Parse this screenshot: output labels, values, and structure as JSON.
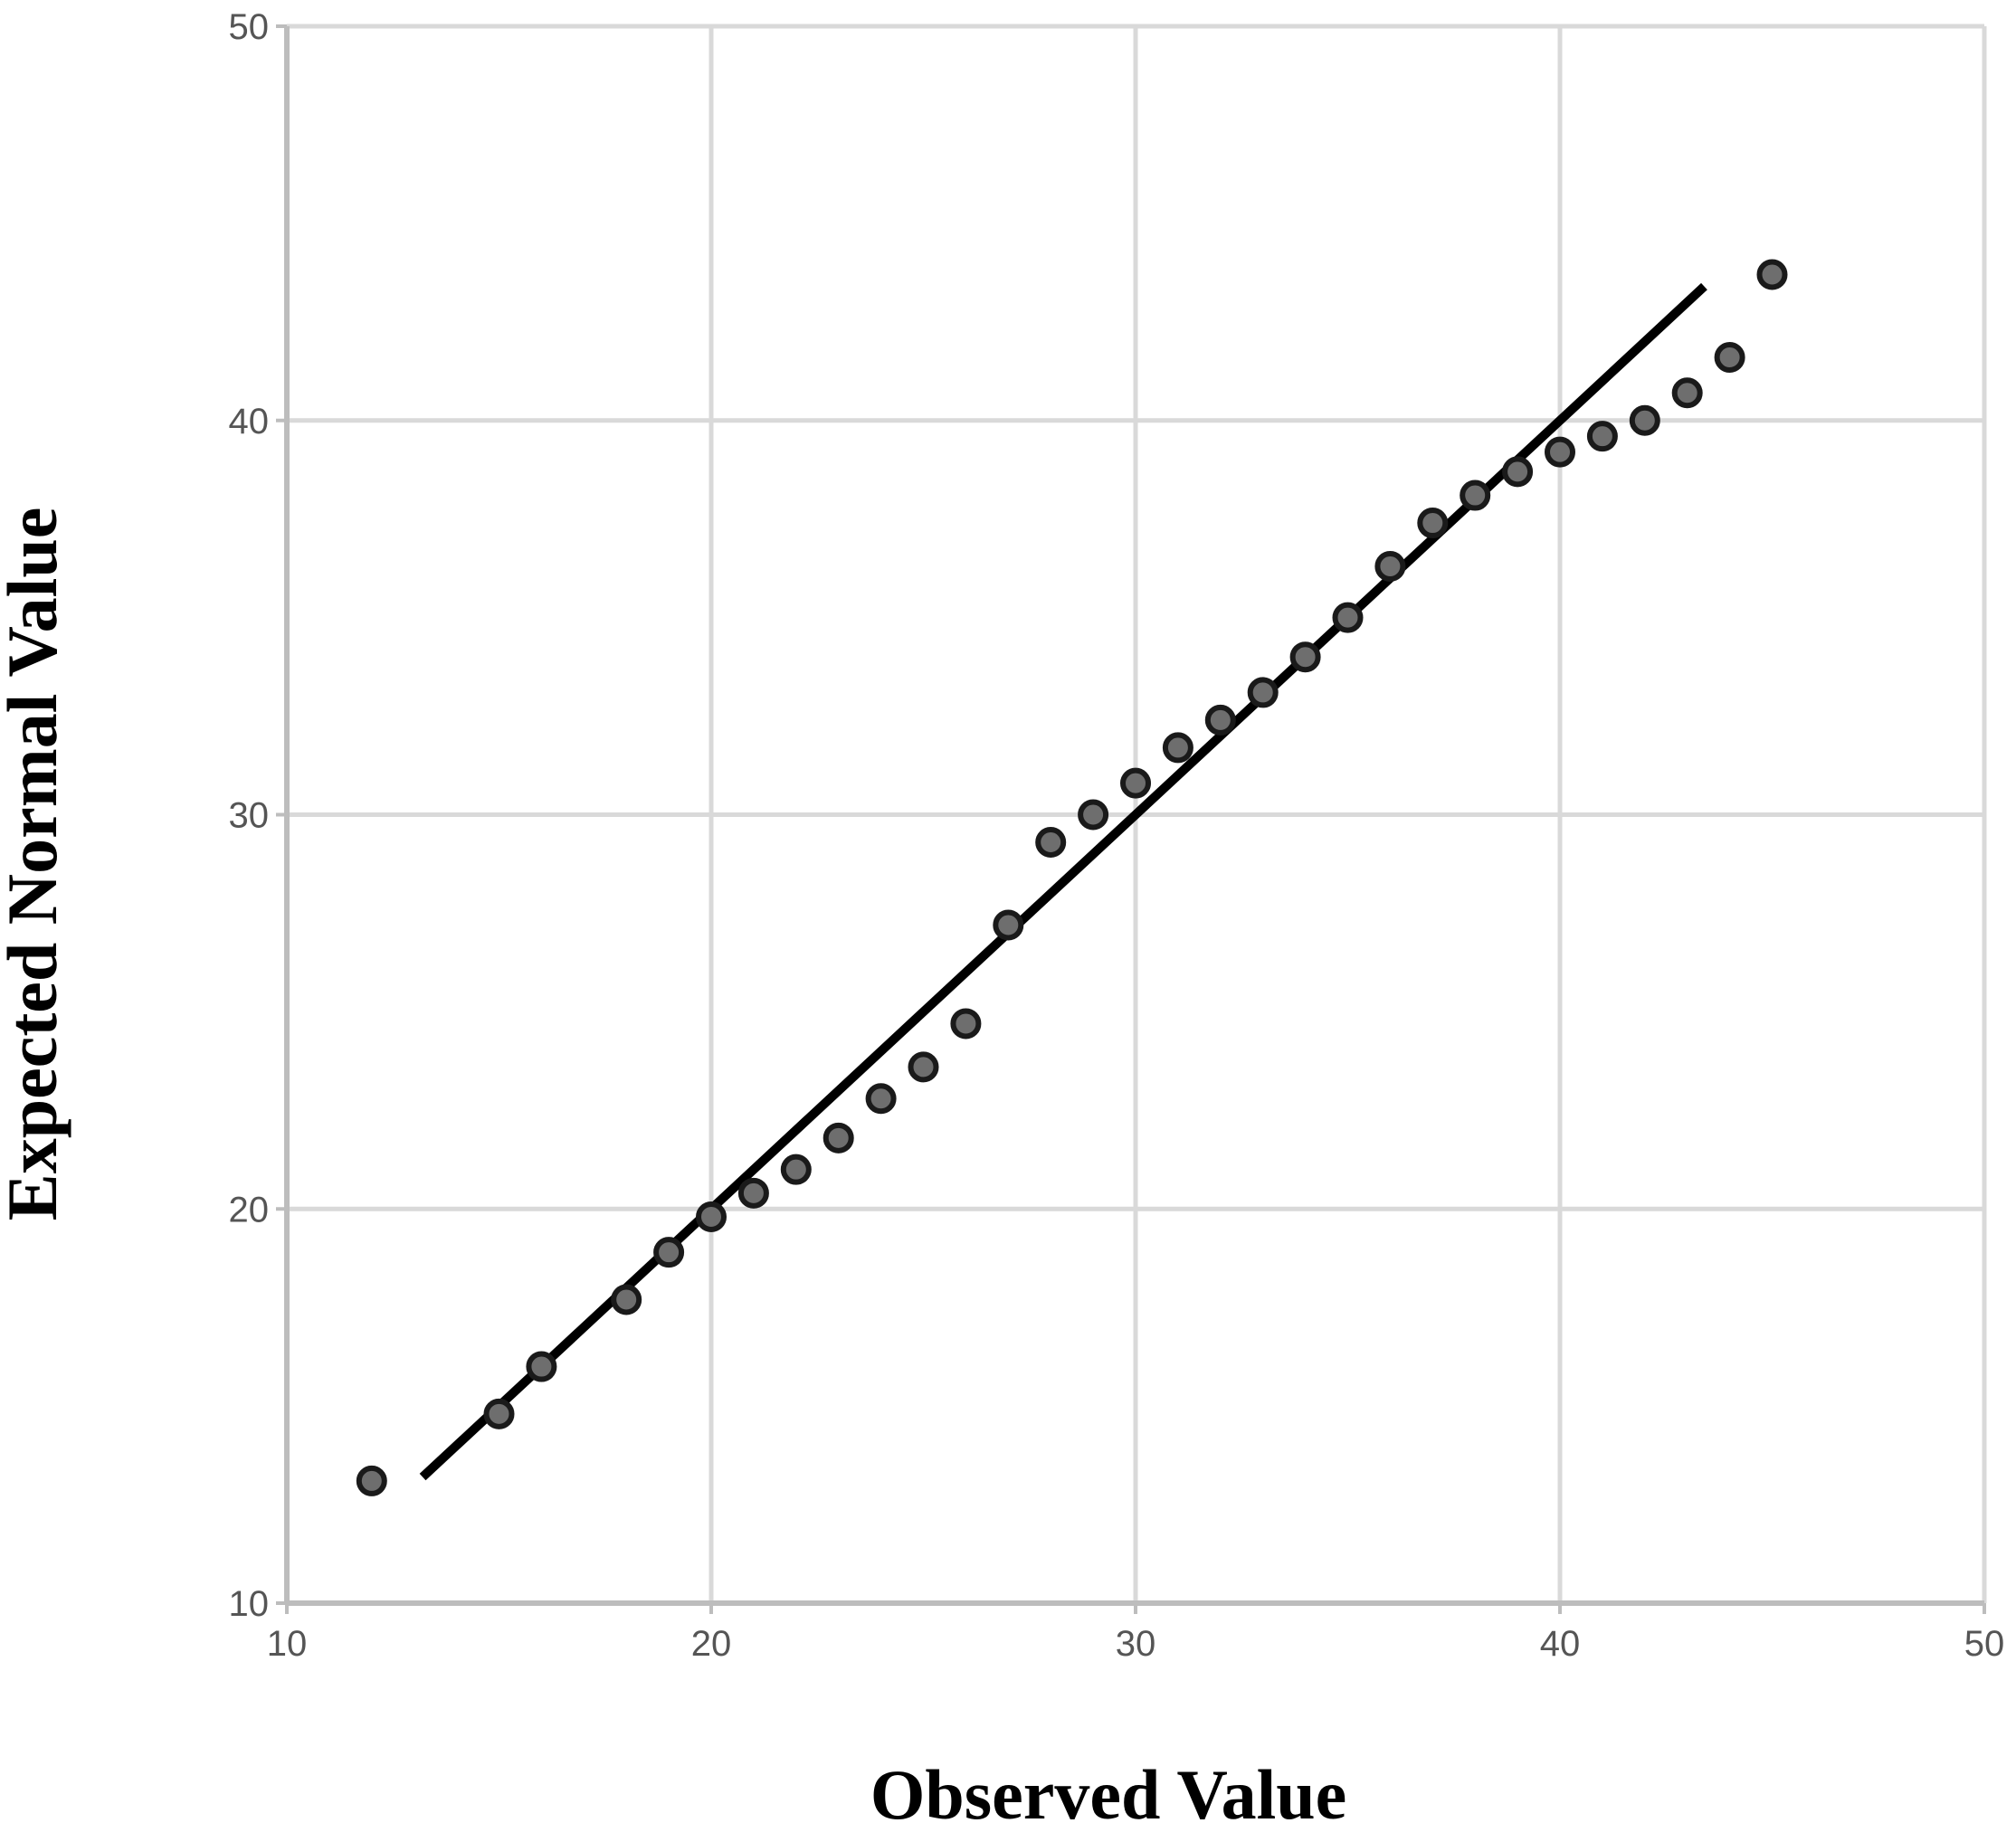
{
  "chart_data": {
    "type": "scatter",
    "title": "",
    "xlabel": "Observed Value",
    "ylabel": "Expected Normal Value",
    "xlim": [
      10,
      50
    ],
    "ylim": [
      10,
      50
    ],
    "xticks": [
      10,
      20,
      30,
      40,
      50
    ],
    "yticks": [
      10,
      20,
      30,
      40,
      50
    ],
    "grid": true,
    "legend": "none",
    "colors": {
      "points": "#6e6e6e",
      "point_edge": "#1a1a1a",
      "line": "#000000",
      "grid": "#d9d9d9",
      "axis": "#bdbdbd"
    },
    "series": [
      {
        "type": "scatter",
        "points": [
          [
            12,
            13.1
          ],
          [
            15,
            14.8
          ],
          [
            16,
            16.0
          ],
          [
            18,
            17.7
          ],
          [
            19,
            18.9
          ],
          [
            20,
            19.8
          ],
          [
            21,
            20.4
          ],
          [
            22,
            21.0
          ],
          [
            23,
            21.8
          ],
          [
            24,
            22.8
          ],
          [
            25,
            23.6
          ],
          [
            26,
            24.7
          ],
          [
            27,
            27.2
          ],
          [
            28,
            29.3
          ],
          [
            29,
            30.0
          ],
          [
            30,
            30.8
          ],
          [
            31,
            31.7
          ],
          [
            32,
            32.4
          ],
          [
            33,
            33.1
          ],
          [
            34,
            34.0
          ],
          [
            35,
            35.0
          ],
          [
            36,
            36.3
          ],
          [
            37,
            37.4
          ],
          [
            38,
            38.1
          ],
          [
            39,
            38.7
          ],
          [
            40,
            39.2
          ],
          [
            41,
            39.6
          ],
          [
            42,
            40.0
          ],
          [
            43,
            40.7
          ],
          [
            44,
            41.6
          ],
          [
            45,
            43.7
          ]
        ]
      },
      {
        "type": "line",
        "points": [
          [
            13.2,
            13.2
          ],
          [
            43.4,
            43.4
          ]
        ]
      }
    ]
  }
}
